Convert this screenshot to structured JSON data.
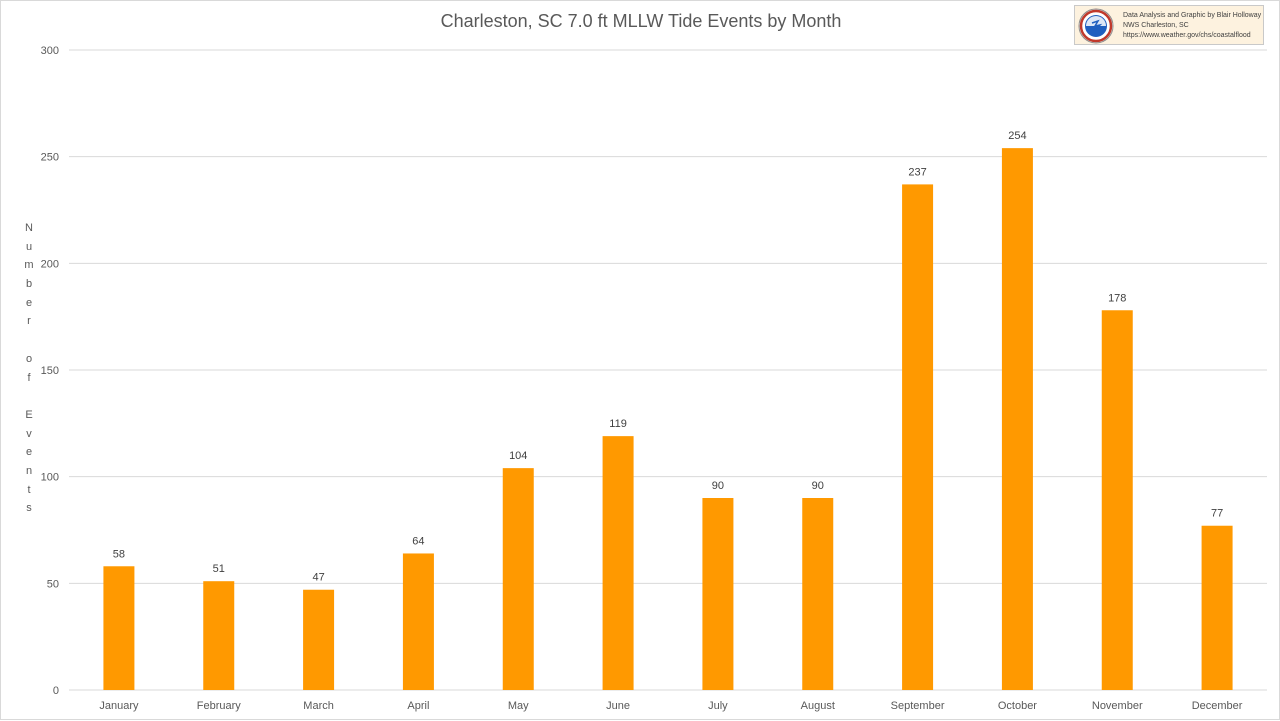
{
  "colors": {
    "bar": "#ff9900",
    "grid": "#d9d9d9",
    "text": "#595959"
  },
  "credit": {
    "icon": "nws-logo-icon",
    "line1": "Data Analysis and Graphic by Blair Holloway",
    "line2": "NWS Charleston, SC",
    "line3": "https://www.weather.gov/chs/coastalflood"
  },
  "chart_data": {
    "type": "bar",
    "title": "Charleston, SC 7.0 ft MLLW Tide Events by Month",
    "xlabel": "",
    "ylabel": "Number of Events",
    "categories": [
      "January",
      "February",
      "March",
      "April",
      "May",
      "June",
      "July",
      "August",
      "September",
      "October",
      "November",
      "December"
    ],
    "values": [
      58,
      51,
      47,
      64,
      104,
      119,
      90,
      90,
      237,
      254,
      178,
      77
    ],
    "ylim": [
      0,
      300
    ],
    "yticks": [
      0,
      50,
      100,
      150,
      200,
      250,
      300
    ],
    "grid": true,
    "legend": "none",
    "data_labels": true
  }
}
